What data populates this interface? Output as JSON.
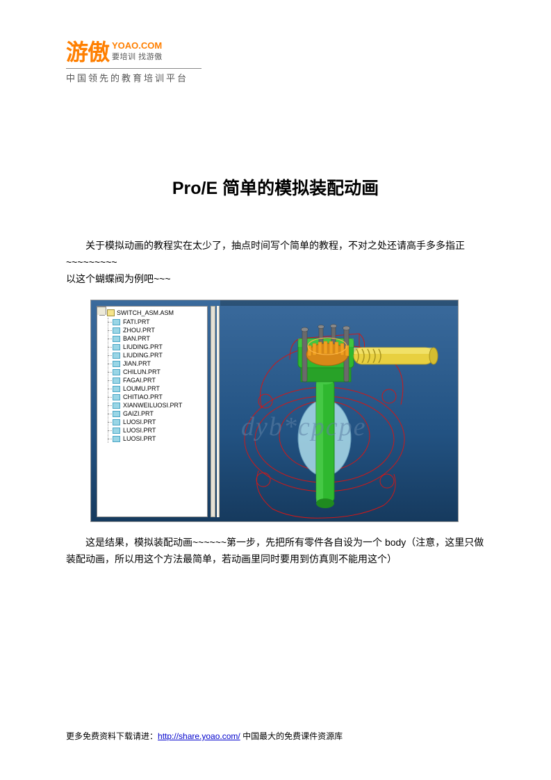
{
  "logo": {
    "cn": "游傲",
    "en": "YOAO.COM",
    "slogan": "要培训 找游傲",
    "platform": "中国领先的教育培训平台"
  },
  "title": "Pro/E 简单的模拟装配动画",
  "paragraph1": "关于模拟动画的教程实在太少了，抽点时间写个简单的教程，不对之处还请高手多多指正~~~~~~~~~",
  "paragraph2": "以这个蝴蝶阀为例吧~~~",
  "paragraph3": "这是结果，模拟装配动画~~~~~~第一步，先把所有零件各自设为一个 body（注意，这里只做装配动画，所以用这个方法最简单，若动画里同时要用到仿真则不能用这个）",
  "screenshot": {
    "root": "SWITCH_ASM.ASM",
    "parts": [
      "FATI.PRT",
      "ZHOU.PRT",
      "BAN.PRT",
      "LIUDING.PRT",
      "LIUDING.PRT",
      "JIAN.PRT",
      "CHILUN.PRT",
      "FAGAI.PRT",
      "LOUMU.PRT",
      "CHITIAO.PRT",
      "XIANWEILUOSI.PRT",
      "GAIZI.PRT",
      "LUOSI.PRT",
      "LUOSI.PRT",
      "LUOSI.PRT"
    ],
    "watermark": "dyb*cpcpe",
    "model": {
      "wireframe_color": "#d01818",
      "shaft_color": "#2fb82f",
      "shaft_dark": "#1f8a1f",
      "gear_color": "#f0a020",
      "worm_color": "#e8d040",
      "bolt_color": "#6a6a6a",
      "disc_color": "#a5d5e5"
    }
  },
  "footer": {
    "prefix": "更多免费资料下载请进：",
    "url": "http://share.yoao.com/",
    "suffix": " 中国最大的免费课件资源库"
  }
}
